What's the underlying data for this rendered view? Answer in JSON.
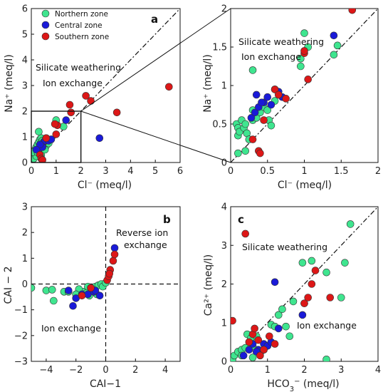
{
  "colors": {
    "Northern zone": "#3fe58f",
    "Central zone": "#1a1ad8",
    "Southern zone": "#dd1717"
  },
  "legend": [
    "Northern zone",
    "Central zone",
    "Southern zone"
  ],
  "chart_data": [
    {
      "id": "a",
      "type": "scatter",
      "panel_label": "a",
      "xlabel": "Cl⁻ (meq/l)",
      "ylabel": "Na⁺ (meq/l)",
      "xlim": [
        0,
        6
      ],
      "ylim": [
        0,
        6
      ],
      "xticks": [
        0,
        1,
        2,
        3,
        4,
        5,
        6
      ],
      "yticks": [
        0,
        1,
        2,
        3,
        4,
        5,
        6
      ],
      "reference_line": "1:1 dashed",
      "annotations": [
        "Silicate weathering",
        "Ion exchange"
      ],
      "series": [
        {
          "name": "Northern zone",
          "points": [
            [
              0.05,
              0.1
            ],
            [
              0.08,
              0.2
            ],
            [
              0.1,
              0.3
            ],
            [
              0.12,
              0.45
            ],
            [
              0.15,
              0.5
            ],
            [
              0.2,
              0.6
            ],
            [
              0.25,
              0.7
            ],
            [
              0.3,
              0.8
            ],
            [
              0.35,
              0.9
            ],
            [
              0.4,
              0.95
            ],
            [
              0.45,
              0.85
            ],
            [
              0.5,
              0.75
            ],
            [
              0.55,
              0.7
            ],
            [
              0.6,
              0.65
            ],
            [
              0.7,
              0.75
            ],
            [
              0.8,
              0.9
            ],
            [
              0.1,
              0.15
            ],
            [
              0.3,
              1.2
            ],
            [
              0.15,
              0.35
            ],
            [
              0.2,
              0.25
            ],
            [
              1.0,
              1.65
            ],
            [
              1.3,
              1.4
            ],
            [
              0.05,
              0.4
            ],
            [
              0.4,
              0.3
            ],
            [
              0.55,
              0.5
            ],
            [
              0.25,
              0.4
            ]
          ]
        },
        {
          "name": "Central zone",
          "points": [
            [
              0.3,
              0.55
            ],
            [
              0.4,
              0.65
            ],
            [
              0.5,
              0.8
            ],
            [
              0.6,
              0.95
            ],
            [
              0.55,
              0.85
            ],
            [
              0.45,
              0.6
            ],
            [
              0.35,
              0.7
            ],
            [
              1.4,
              1.65
            ],
            [
              2.75,
              0.95
            ],
            [
              0.2,
              0.5
            ],
            [
              0.7,
              0.85
            ],
            [
              0.8,
              0.9
            ]
          ]
        },
        {
          "name": "Southern zone",
          "points": [
            [
              0.35,
              0.3
            ],
            [
              0.4,
              0.15
            ],
            [
              0.45,
              0.1
            ],
            [
              0.6,
              0.95
            ],
            [
              1.0,
              1.1
            ],
            [
              1.05,
              1.45
            ],
            [
              1.6,
              1.95
            ],
            [
              2.2,
              2.6
            ],
            [
              2.4,
              2.4
            ],
            [
              3.45,
              1.95
            ],
            [
              5.55,
              2.95
            ],
            [
              1.55,
              2.25
            ],
            [
              0.95,
              1.5
            ]
          ]
        }
      ]
    },
    {
      "id": "inset",
      "type": "scatter",
      "xlabel": "Cl⁻ (meq/l)",
      "ylabel": "Na⁺ (meq/l)",
      "xlim": [
        0,
        2
      ],
      "ylim": [
        0,
        2
      ],
      "xticks": [
        0,
        0.5,
        1,
        1.5,
        2
      ],
      "yticks": [
        0,
        0.5,
        1,
        1.5,
        2
      ],
      "reference_line": "1:1 dashed",
      "annotations": [
        "Silicate weathering",
        "Ion exchange"
      ],
      "series": [
        {
          "name": "Northern zone",
          "points": [
            [
              0.08,
              0.5
            ],
            [
              0.1,
              0.45
            ],
            [
              0.1,
              0.35
            ],
            [
              0.12,
              0.4
            ],
            [
              0.15,
              0.55
            ],
            [
              0.18,
              0.45
            ],
            [
              0.2,
              0.5
            ],
            [
              0.22,
              0.38
            ],
            [
              0.25,
              0.3
            ],
            [
              0.3,
              0.55
            ],
            [
              0.3,
              0.68
            ],
            [
              0.35,
              0.58
            ],
            [
              0.4,
              0.65
            ],
            [
              0.45,
              0.72
            ],
            [
              0.5,
              0.68
            ],
            [
              0.52,
              0.55
            ],
            [
              0.55,
              0.48
            ],
            [
              0.3,
              1.2
            ],
            [
              0.2,
              0.15
            ],
            [
              0.1,
              0.12
            ],
            [
              0.95,
              1.35
            ],
            [
              0.95,
              1.25
            ],
            [
              1.0,
              1.68
            ],
            [
              1.05,
              1.5
            ],
            [
              1.4,
              1.4
            ],
            [
              1.45,
              1.52
            ],
            [
              0.6,
              0.8
            ]
          ]
        },
        {
          "name": "Central zone",
          "points": [
            [
              0.28,
              0.58
            ],
            [
              0.33,
              0.65
            ],
            [
              0.38,
              0.72
            ],
            [
              0.45,
              0.78
            ],
            [
              0.5,
              0.85
            ],
            [
              0.55,
              0.75
            ],
            [
              0.6,
              0.95
            ],
            [
              0.65,
              0.92
            ],
            [
              0.7,
              0.85
            ],
            [
              0.35,
              0.88
            ],
            [
              0.42,
              0.78
            ],
            [
              1.4,
              1.65
            ]
          ]
        },
        {
          "name": "Southern zone",
          "points": [
            [
              0.3,
              0.3
            ],
            [
              0.38,
              0.15
            ],
            [
              0.4,
              0.12
            ],
            [
              0.6,
              0.95
            ],
            [
              0.65,
              0.88
            ],
            [
              0.75,
              0.83
            ],
            [
              1.0,
              1.42
            ],
            [
              1.05,
              1.08
            ],
            [
              1.0,
              1.45
            ],
            [
              1.65,
              1.98
            ],
            [
              0.45,
              0.55
            ]
          ]
        }
      ]
    },
    {
      "id": "b",
      "type": "scatter",
      "panel_label": "b",
      "xlabel": "CAI−1",
      "ylabel": "CAI − 2",
      "xlim": [
        -5,
        5
      ],
      "ylim": [
        -3,
        3
      ],
      "xticks": [
        -4,
        -2,
        0,
        2,
        4
      ],
      "yticks": [
        -3,
        -2,
        -1,
        0,
        1,
        2,
        3
      ],
      "annotations": [
        "Reverse ion exchange",
        "Ion exchange"
      ],
      "series": [
        {
          "name": "Northern zone",
          "points": [
            [
              -5.0,
              -0.15
            ],
            [
              -4.0,
              -0.25
            ],
            [
              -3.6,
              -0.22
            ],
            [
              -3.5,
              -0.65
            ],
            [
              -2.8,
              -0.3
            ],
            [
              -2.5,
              -0.3
            ],
            [
              -1.5,
              -0.3
            ],
            [
              -1.3,
              -0.35
            ],
            [
              -1.2,
              -0.1
            ],
            [
              -1.0,
              -0.15
            ],
            [
              -0.9,
              -0.25
            ],
            [
              -0.7,
              -0.1
            ],
            [
              -0.5,
              -0.05
            ],
            [
              -0.3,
              0.0
            ],
            [
              -0.2,
              -0.1
            ],
            [
              0.0,
              0.05
            ],
            [
              -1.8,
              -0.2
            ],
            [
              -2.0,
              -0.4
            ],
            [
              -0.6,
              -0.4
            ],
            [
              -1.1,
              -0.45
            ]
          ]
        },
        {
          "name": "Central zone",
          "points": [
            [
              -2.2,
              -0.85
            ],
            [
              -2.0,
              -0.55
            ],
            [
              -1.6,
              -0.4
            ],
            [
              -1.2,
              -0.4
            ],
            [
              -0.8,
              -0.3
            ],
            [
              -0.4,
              -0.45
            ],
            [
              -2.5,
              -0.25
            ],
            [
              0.6,
              1.4
            ],
            [
              -0.7,
              -0.25
            ]
          ]
        },
        {
          "name": "Southern zone",
          "points": [
            [
              0.1,
              0.15
            ],
            [
              0.2,
              0.3
            ],
            [
              0.3,
              0.55
            ],
            [
              0.5,
              0.9
            ],
            [
              0.6,
              1.15
            ],
            [
              0.25,
              0.4
            ],
            [
              -1.6,
              -0.45
            ],
            [
              -1.0,
              -0.15
            ]
          ]
        }
      ]
    },
    {
      "id": "c",
      "type": "scatter",
      "panel_label": "c",
      "xlabel": "HCO₃⁻ (meq/l)",
      "ylabel": "Ca²⁺ (meq/l)",
      "xlim": [
        0,
        4
      ],
      "ylim": [
        0,
        4
      ],
      "xticks": [
        0,
        1,
        2,
        3,
        4
      ],
      "yticks": [
        0,
        1,
        2,
        3,
        4
      ],
      "reference_line": "1:1 dashed",
      "annotations": [
        "Silicate weathering",
        "Ion exchange"
      ],
      "series": [
        {
          "name": "Northern zone",
          "points": [
            [
              0.05,
              0.05
            ],
            [
              0.1,
              0.15
            ],
            [
              0.2,
              0.25
            ],
            [
              0.3,
              0.3
            ],
            [
              0.4,
              0.35
            ],
            [
              0.45,
              0.7
            ],
            [
              0.55,
              0.6
            ],
            [
              0.6,
              0.4
            ],
            [
              0.7,
              0.65
            ],
            [
              0.8,
              0.2
            ],
            [
              0.9,
              0.3
            ],
            [
              1.0,
              0.4
            ],
            [
              1.1,
              0.95
            ],
            [
              1.2,
              0.9
            ],
            [
              1.3,
              1.2
            ],
            [
              1.4,
              1.35
            ],
            [
              1.5,
              0.9
            ],
            [
              1.6,
              0.65
            ],
            [
              1.7,
              1.55
            ],
            [
              1.95,
              2.55
            ],
            [
              2.2,
              2.6
            ],
            [
              2.6,
              2.3
            ],
            [
              2.6,
              0.05
            ],
            [
              3.0,
              1.65
            ],
            [
              3.1,
              2.55
            ],
            [
              3.25,
              3.55
            ],
            [
              0.3,
              0.15
            ],
            [
              0.6,
              0.1
            ]
          ]
        },
        {
          "name": "Central zone",
          "points": [
            [
              0.35,
              0.15
            ],
            [
              0.5,
              0.3
            ],
            [
              0.6,
              0.45
            ],
            [
              0.75,
              0.3
            ],
            [
              0.9,
              0.45
            ],
            [
              1.0,
              0.4
            ],
            [
              1.1,
              0.5
            ],
            [
              1.2,
              2.05
            ],
            [
              1.3,
              0.85
            ],
            [
              1.95,
              1.2
            ],
            [
              2.0,
              1.5
            ],
            [
              0.7,
              0.25
            ]
          ]
        },
        {
          "name": "Southern zone",
          "points": [
            [
              0.05,
              1.05
            ],
            [
              0.4,
              3.3
            ],
            [
              0.5,
              0.5
            ],
            [
              0.6,
              0.7
            ],
            [
              0.65,
              0.85
            ],
            [
              0.75,
              0.55
            ],
            [
              0.9,
              0.3
            ],
            [
              1.05,
              0.65
            ],
            [
              1.2,
              0.45
            ],
            [
              2.0,
              1.5
            ],
            [
              2.1,
              1.65
            ],
            [
              2.2,
              2.0
            ],
            [
              2.3,
              2.35
            ],
            [
              2.7,
              1.65
            ],
            [
              0.8,
              0.15
            ]
          ]
        }
      ]
    }
  ]
}
